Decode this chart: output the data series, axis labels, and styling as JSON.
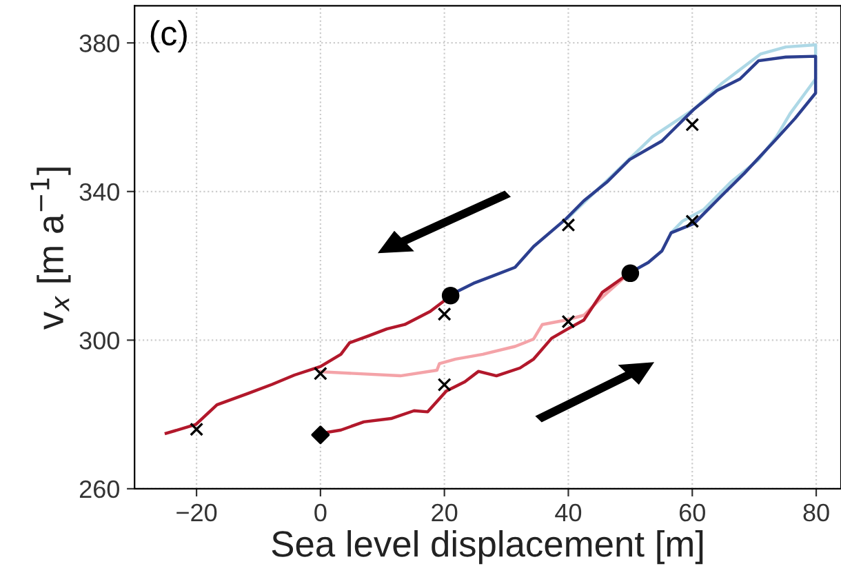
{
  "chart_data": {
    "type": "line",
    "xlabel": "Sea level displacement [m]",
    "ylabel": "v$_{x}$ [m a$^{−1}$]",
    "annotations": [
      "(c)"
    ],
    "xlim": [
      -30,
      84
    ],
    "ylim": [
      260,
      390
    ],
    "xticks": [
      {
        "value": -20,
        "label": "−20"
      },
      0,
      20,
      40,
      60,
      80
    ],
    "yticks": [
      260,
      300,
      340,
      380
    ],
    "grid": true,
    "legend": false,
    "marker": "none",
    "line_style": "solid",
    "series": [
      {
        "color": "#f4a3a8",
        "x": [
          0,
          12.9,
          18.8,
          19.2,
          21.8,
          26.2,
          31.4,
          34.4,
          35.8,
          39.6,
          42.5,
          45.5,
          48.4,
          49.9
        ],
        "values": [
          291.5,
          290.4,
          291.9,
          293.7,
          294.9,
          296.2,
          298.3,
          300.3,
          304.2,
          305.4,
          306.7,
          311.6,
          315.9,
          318.1
        ]
      },
      {
        "color": "#b2182b",
        "x": [
          0,
          3.3,
          7.0,
          11.4,
          15.1,
          17.3,
          20.3,
          23.3,
          25.5,
          28.4,
          32.2,
          34.4,
          37.3,
          39.9,
          42.5,
          45.5,
          49.9
        ],
        "values": [
          274.9,
          275.8,
          278.0,
          278.9,
          281.0,
          280.7,
          286.3,
          288.8,
          291.6,
          290.4,
          292.5,
          294.9,
          300.5,
          303.0,
          305.4,
          312.9,
          318.1
        ]
      },
      {
        "color": "#add8e6",
        "x": [
          56.6,
          58.4,
          61.8,
          66.2,
          70.7,
          73.6,
          75.8,
          79.9,
          79.9,
          75.1,
          71.0,
          64.7,
          60.3,
          53.6,
          46.2,
          40
        ],
        "values": [
          328.9,
          332.0,
          335.1,
          342.5,
          348.6,
          354.8,
          361.0,
          370.3,
          379.5,
          378.9,
          377.0,
          369.0,
          362.2,
          354.8,
          342.9,
          333
        ]
      },
      {
        "color": "#2c3f8f",
        "x": [
          49.9,
          52.9,
          55.1,
          56.6,
          60.3,
          64.7,
          68.4,
          73.6,
          76.6,
          79.9,
          79.9,
          75.1,
          70.7,
          67.7,
          64.0,
          60.3,
          55.1,
          49.9,
          46.2,
          42.5,
          39.6,
          34.4,
          31.4,
          27.7,
          24.7,
          21.0
        ],
        "values": [
          318.1,
          320.9,
          324.0,
          328.9,
          331.4,
          338.8,
          344.9,
          354.2,
          359.7,
          366.5,
          376.4,
          376.2,
          375.2,
          370.3,
          367.2,
          362.2,
          353.6,
          348.6,
          342.5,
          337.5,
          332.6,
          325.2,
          319.6,
          317.2,
          315.3,
          312.2
        ]
      },
      {
        "color": "#b2182b",
        "x": [
          20.3,
          17.7,
          13.6,
          10.7,
          7.7,
          4.7,
          3.3,
          0,
          -4.2,
          -7.8,
          -11.6,
          -16.7,
          -20.1,
          -24.9
        ],
        "values": [
          311.0,
          307.7,
          304.2,
          303.0,
          301.1,
          299.3,
          296.2,
          292.9,
          290.6,
          288.1,
          285.7,
          282.6,
          277.3,
          274.9
        ]
      },
      {
        "type": "scatter",
        "marker": "cross",
        "color": "#000000",
        "x": [
          -20,
          0,
          20,
          20,
          40,
          40,
          60,
          60
        ],
        "values": [
          276,
          291,
          307,
          288,
          331,
          305,
          358,
          332
        ]
      },
      {
        "type": "scatter",
        "marker": "circle",
        "color": "#000000",
        "x": [
          21,
          50
        ],
        "values": [
          312,
          318
        ]
      },
      {
        "type": "scatter",
        "marker": "diamond",
        "color": "#000000",
        "x": [
          0
        ],
        "values": [
          274.5
        ]
      }
    ]
  }
}
